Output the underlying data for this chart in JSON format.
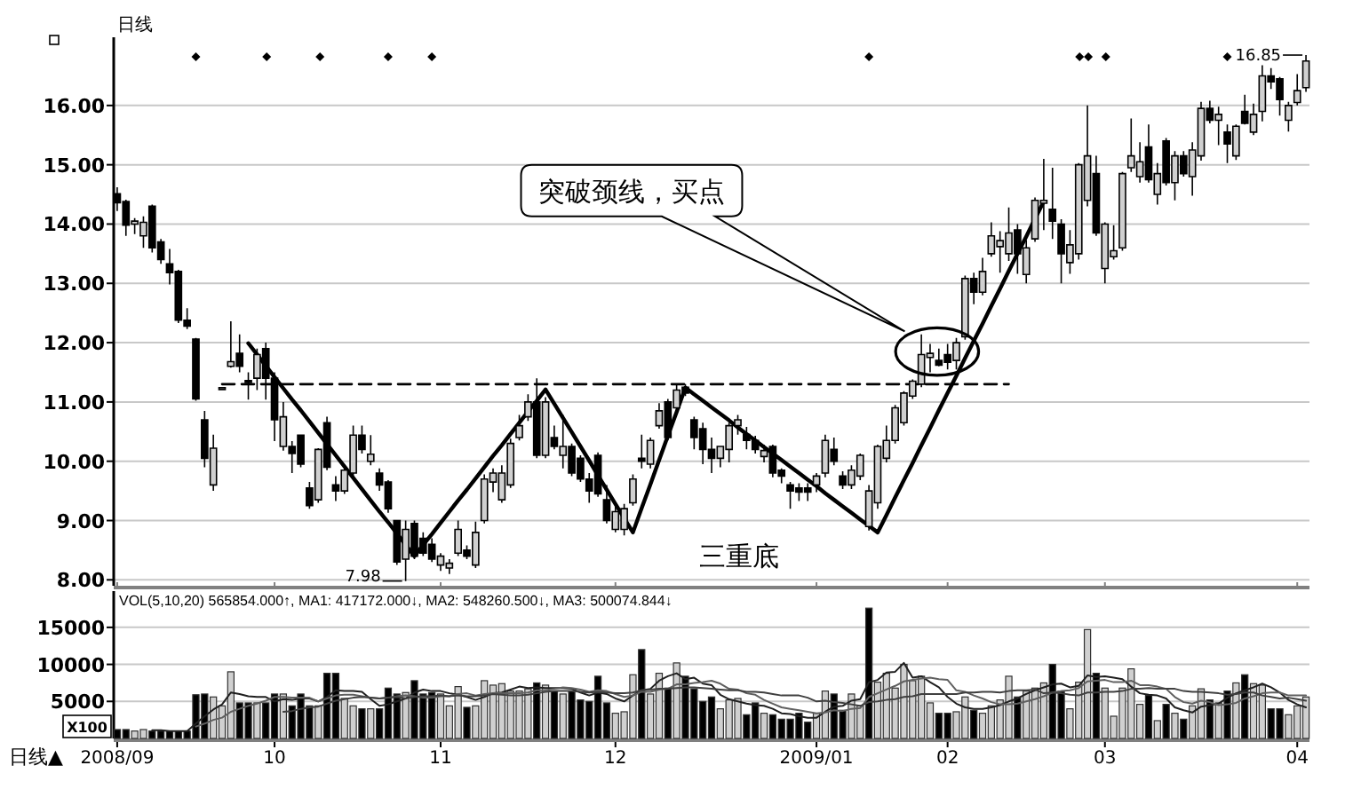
{
  "chart_data": [
    {
      "type": "candlestick",
      "title": "日线",
      "categories": [
        "2008/09",
        null,
        null,
        null,
        null,
        null,
        null,
        null,
        null,
        null,
        null,
        null,
        null,
        null,
        null,
        null,
        null,
        null,
        "10",
        null,
        null,
        null,
        null,
        null,
        null,
        null,
        null,
        null,
        null,
        null,
        null,
        null,
        null,
        null,
        null,
        null,
        null,
        "11",
        null,
        null,
        null,
        null,
        null,
        null,
        null,
        null,
        null,
        null,
        null,
        null,
        null,
        null,
        null,
        null,
        null,
        null,
        null,
        "12",
        null,
        null,
        null,
        null,
        null,
        null,
        null,
        null,
        null,
        null,
        null,
        null,
        null,
        null,
        null,
        null,
        null,
        null,
        null,
        null,
        null,
        null,
        "2009/01",
        null,
        null,
        null,
        null,
        null,
        null,
        null,
        null,
        null,
        null,
        null,
        null,
        null,
        null,
        "02",
        null,
        null,
        null,
        null,
        null,
        null,
        null,
        null,
        null,
        null,
        null,
        null,
        null,
        null,
        null,
        null,
        null,
        "03",
        null,
        null,
        null,
        null,
        null,
        null,
        null,
        null,
        null,
        null,
        null,
        null,
        null,
        null,
        null,
        null,
        null,
        null,
        null,
        null,
        null,
        "04",
        null
      ],
      "ohlc": [
        [
          14.51,
          14.62,
          14.22,
          14.36
        ],
        [
          14.38,
          14.41,
          13.8,
          13.98
        ],
        [
          14.0,
          14.1,
          13.83,
          14.05
        ],
        [
          13.8,
          14.13,
          13.6,
          14.03
        ],
        [
          14.3,
          14.33,
          13.52,
          13.6
        ],
        [
          13.7,
          13.75,
          13.33,
          13.4
        ],
        [
          13.33,
          13.58,
          12.98,
          13.18
        ],
        [
          13.2,
          13.23,
          12.33,
          12.38
        ],
        [
          12.38,
          12.58,
          12.23,
          12.28
        ],
        [
          12.06,
          12.08,
          11.02,
          11.05
        ],
        [
          10.7,
          10.85,
          9.9,
          10.05
        ],
        [
          9.6,
          10.45,
          9.5,
          10.22
        ],
        [
          11.22,
          11.25,
          11.2,
          11.24
        ],
        [
          11.6,
          12.36,
          11.58,
          11.68
        ],
        [
          11.82,
          12.14,
          11.5,
          11.6
        ],
        [
          11.36,
          11.5,
          11.04,
          11.34
        ],
        [
          11.4,
          11.9,
          11.2,
          11.8
        ],
        [
          11.9,
          12.0,
          11.04,
          11.4
        ],
        [
          11.4,
          11.5,
          10.34,
          10.7
        ],
        [
          10.25,
          11.0,
          10.18,
          10.75
        ],
        [
          10.25,
          10.34,
          9.8,
          10.13
        ],
        [
          10.44,
          10.44,
          9.9,
          9.95
        ],
        [
          9.55,
          9.65,
          9.2,
          9.25
        ],
        [
          9.35,
          10.22,
          9.3,
          10.2
        ],
        [
          10.65,
          10.75,
          9.85,
          9.9
        ],
        [
          9.6,
          9.75,
          9.33,
          9.5
        ],
        [
          9.5,
          9.93,
          9.45,
          9.85
        ],
        [
          9.8,
          10.6,
          9.74,
          10.44
        ],
        [
          10.44,
          10.6,
          10.13,
          10.2
        ],
        [
          10.0,
          10.44,
          9.93,
          10.12
        ],
        [
          9.8,
          9.88,
          9.5,
          9.6
        ],
        [
          9.65,
          9.68,
          9.13,
          9.2
        ],
        [
          9.0,
          9.0,
          8.25,
          8.3
        ],
        [
          8.35,
          9.0,
          7.98,
          8.85
        ],
        [
          8.95,
          9.0,
          8.35,
          8.4
        ],
        [
          8.7,
          8.8,
          8.4,
          8.45
        ],
        [
          8.6,
          8.7,
          8.3,
          8.35
        ],
        [
          8.25,
          8.45,
          8.15,
          8.4
        ],
        [
          8.2,
          8.35,
          8.1,
          8.28
        ],
        [
          8.45,
          9.0,
          8.4,
          8.85
        ],
        [
          8.5,
          8.58,
          8.35,
          8.4
        ],
        [
          8.25,
          8.98,
          8.2,
          8.8
        ],
        [
          9.0,
          9.78,
          8.95,
          9.7
        ],
        [
          9.65,
          9.88,
          9.48,
          9.8
        ],
        [
          9.35,
          9.93,
          9.3,
          9.8
        ],
        [
          9.6,
          10.38,
          9.55,
          10.3
        ],
        [
          10.4,
          10.78,
          10.35,
          10.6
        ],
        [
          10.75,
          11.13,
          10.68,
          11.0
        ],
        [
          11.0,
          11.4,
          10.05,
          10.1
        ],
        [
          10.1,
          11.08,
          10.05,
          11.0
        ],
        [
          10.4,
          10.6,
          10.2,
          10.25
        ],
        [
          10.1,
          10.78,
          9.88,
          10.25
        ],
        [
          10.25,
          10.3,
          9.75,
          9.8
        ],
        [
          10.05,
          10.1,
          9.65,
          9.7
        ],
        [
          9.7,
          9.8,
          9.3,
          9.5
        ],
        [
          10.1,
          10.15,
          9.4,
          9.45
        ],
        [
          9.35,
          9.6,
          8.95,
          9.0
        ],
        [
          8.85,
          9.25,
          8.8,
          9.15
        ],
        [
          8.85,
          9.28,
          8.75,
          9.2
        ],
        [
          9.3,
          9.78,
          9.25,
          9.7
        ],
        [
          10.05,
          10.45,
          9.88,
          10.0
        ],
        [
          9.95,
          10.4,
          9.88,
          10.35
        ],
        [
          10.6,
          10.98,
          10.55,
          10.85
        ],
        [
          11.0,
          11.05,
          10.35,
          10.4
        ],
        [
          10.9,
          11.3,
          10.85,
          11.2
        ],
        [
          11.25,
          11.3,
          11.1,
          11.15
        ],
        [
          10.7,
          10.75,
          10.2,
          10.4
        ],
        [
          10.55,
          10.65,
          9.95,
          10.2
        ],
        [
          10.2,
          10.4,
          9.8,
          10.05
        ],
        [
          10.05,
          10.25,
          9.9,
          10.25
        ],
        [
          10.2,
          10.65,
          9.98,
          10.6
        ],
        [
          10.6,
          10.78,
          10.45,
          10.7
        ],
        [
          10.45,
          10.58,
          10.2,
          10.35
        ],
        [
          10.35,
          10.43,
          10.13,
          10.2
        ],
        [
          10.08,
          10.28,
          9.98,
          10.18
        ],
        [
          10.25,
          10.28,
          9.73,
          9.8
        ],
        [
          9.85,
          9.88,
          9.63,
          9.75
        ],
        [
          9.6,
          9.65,
          9.2,
          9.5
        ],
        [
          9.55,
          9.63,
          9.33,
          9.48
        ],
        [
          9.55,
          9.63,
          9.33,
          9.48
        ],
        [
          9.6,
          9.8,
          9.48,
          9.75
        ],
        [
          9.8,
          10.45,
          9.73,
          10.35
        ],
        [
          10.2,
          10.4,
          9.93,
          10.0
        ],
        [
          9.75,
          9.83,
          9.53,
          9.6
        ],
        [
          9.6,
          9.93,
          9.53,
          9.85
        ],
        [
          9.75,
          10.13,
          9.68,
          10.1
        ],
        [
          8.9,
          9.6,
          8.83,
          9.5
        ],
        [
          9.3,
          10.28,
          9.2,
          10.25
        ],
        [
          10.05,
          10.6,
          9.98,
          10.35
        ],
        [
          10.35,
          10.95,
          10.3,
          10.9
        ],
        [
          10.65,
          11.18,
          10.6,
          11.15
        ],
        [
          11.1,
          11.38,
          11.05,
          11.35
        ],
        [
          11.3,
          12.14,
          11.25,
          11.8
        ],
        [
          11.75,
          11.98,
          11.5,
          11.82
        ],
        [
          11.7,
          11.9,
          11.6,
          11.62
        ],
        [
          11.8,
          11.98,
          11.55,
          11.67
        ],
        [
          11.7,
          12.08,
          11.55,
          12.0
        ],
        [
          12.1,
          13.13,
          12.05,
          13.08
        ],
        [
          13.08,
          13.18,
          12.65,
          12.85
        ],
        [
          12.85,
          13.43,
          12.8,
          13.2
        ],
        [
          13.5,
          14.03,
          13.45,
          13.8
        ],
        [
          13.62,
          13.88,
          13.18,
          13.72
        ],
        [
          13.5,
          14.28,
          13.38,
          13.85
        ],
        [
          13.9,
          14.0,
          13.16,
          13.5
        ],
        [
          13.15,
          13.73,
          13.0,
          13.6
        ],
        [
          13.75,
          14.45,
          13.7,
          14.4
        ],
        [
          14.35,
          15.1,
          13.9,
          14.4
        ],
        [
          14.25,
          14.95,
          13.75,
          14.05
        ],
        [
          14.0,
          14.08,
          13.0,
          13.5
        ],
        [
          13.35,
          13.9,
          13.16,
          13.65
        ],
        [
          13.5,
          15.03,
          13.4,
          15.0
        ],
        [
          14.4,
          16.0,
          14.3,
          15.15
        ],
        [
          14.85,
          15.15,
          13.8,
          13.85
        ],
        [
          13.25,
          14.03,
          13.0,
          14.0
        ],
        [
          13.45,
          13.98,
          13.4,
          13.55
        ],
        [
          13.6,
          14.88,
          13.55,
          14.85
        ],
        [
          14.95,
          15.78,
          14.88,
          15.15
        ],
        [
          14.8,
          15.38,
          14.7,
          15.05
        ],
        [
          15.3,
          15.68,
          14.7,
          14.75
        ],
        [
          14.5,
          15.03,
          14.33,
          14.85
        ],
        [
          15.4,
          15.45,
          14.65,
          14.7
        ],
        [
          14.7,
          15.23,
          14.4,
          15.15
        ],
        [
          15.15,
          15.23,
          14.8,
          14.85
        ],
        [
          14.8,
          15.38,
          14.48,
          15.25
        ],
        [
          15.15,
          16.06,
          15.07,
          15.95
        ],
        [
          15.95,
          16.08,
          15.7,
          15.75
        ],
        [
          15.75,
          15.98,
          15.33,
          15.85
        ],
        [
          15.55,
          15.68,
          15.03,
          15.35
        ],
        [
          15.15,
          15.68,
          15.08,
          15.65
        ],
        [
          15.9,
          16.18,
          15.68,
          15.7
        ],
        [
          15.55,
          16.03,
          15.5,
          15.85
        ],
        [
          15.9,
          16.68,
          15.73,
          16.5
        ],
        [
          16.5,
          16.63,
          16.28,
          16.4
        ],
        [
          16.45,
          16.48,
          15.83,
          16.1
        ],
        [
          15.75,
          16.06,
          15.56,
          16.0
        ],
        [
          16.05,
          16.53,
          16.0,
          16.25
        ],
        [
          16.3,
          16.85,
          16.23,
          16.75
        ]
      ],
      "colors": [
        "#000000",
        "#000000",
        "#d0d0d0",
        "#d0d0d0",
        "#000000",
        "#000000",
        "#000000",
        "#000000",
        "#000000",
        "#000000",
        "#000000",
        "#d0d0d0",
        "#d0d0d0",
        "#d0d0d0",
        "#000000",
        "#000000",
        "#d0d0d0",
        "#000000",
        "#000000",
        "#d0d0d0",
        "#000000",
        "#000000",
        "#000000",
        "#d0d0d0",
        "#000000",
        "#000000",
        "#d0d0d0",
        "#d0d0d0",
        "#000000",
        "#d0d0d0",
        "#000000",
        "#000000",
        "#000000",
        "#d0d0d0",
        "#000000",
        "#000000",
        "#000000",
        "#d0d0d0",
        "#d0d0d0",
        "#d0d0d0",
        "#000000",
        "#d0d0d0",
        "#d0d0d0",
        "#d0d0d0",
        "#d0d0d0",
        "#d0d0d0",
        "#d0d0d0",
        "#d0d0d0",
        "#000000",
        "#d0d0d0",
        "#000000",
        "#d0d0d0",
        "#000000",
        "#000000",
        "#000000",
        "#000000",
        "#000000",
        "#d0d0d0",
        "#d0d0d0",
        "#d0d0d0",
        "#000000",
        "#d0d0d0",
        "#d0d0d0",
        "#000000",
        "#d0d0d0",
        "#000000",
        "#000000",
        "#000000",
        "#000000",
        "#d0d0d0",
        "#d0d0d0",
        "#d0d0d0",
        "#000000",
        "#000000",
        "#d0d0d0",
        "#000000",
        "#000000",
        "#000000",
        "#000000",
        "#000000",
        "#d0d0d0",
        "#d0d0d0",
        "#000000",
        "#000000",
        "#d0d0d0",
        "#d0d0d0",
        "#d0d0d0",
        "#d0d0d0",
        "#d0d0d0",
        "#d0d0d0",
        "#d0d0d0",
        "#d0d0d0",
        "#d0d0d0",
        "#d0d0d0",
        "#000000",
        "#000000",
        "#d0d0d0",
        "#d0d0d0",
        "#000000",
        "#d0d0d0",
        "#d0d0d0",
        "#d0d0d0",
        "#d0d0d0",
        "#000000",
        "#d0d0d0",
        "#d0d0d0",
        "#d0d0d0",
        "#000000",
        "#000000",
        "#d0d0d0",
        "#d0d0d0",
        "#d0d0d0",
        "#000000",
        "#d0d0d0",
        "#d0d0d0",
        "#d0d0d0",
        "#d0d0d0",
        "#d0d0d0",
        "#000000",
        "#d0d0d0",
        "#000000",
        "#d0d0d0",
        "#000000",
        "#d0d0d0",
        "#d0d0d0",
        "#000000",
        "#d0d0d0",
        "#000000",
        "#d0d0d0",
        "#000000",
        "#d0d0d0",
        "#d0d0d0",
        "#000000",
        "#000000",
        "#d0d0d0",
        "#d0d0d0",
        "#d0d0d0"
      ],
      "series": [
        {
          "type": "line",
          "color": "#000000",
          "line_style": "dashed",
          "values": [
            null,
            null,
            null,
            null,
            null,
            null,
            null,
            null,
            null,
            null,
            null,
            null,
            11.3,
            11.3,
            11.3,
            11.3,
            11.3,
            11.3,
            11.3,
            11.3,
            11.3,
            11.3,
            11.3,
            11.3,
            11.3,
            11.3,
            11.3,
            11.3,
            11.3,
            11.3,
            11.3,
            11.3,
            11.3,
            11.3,
            11.3,
            11.3,
            11.3,
            11.3,
            11.3,
            11.3,
            11.3,
            11.3,
            11.3,
            11.3,
            11.3,
            11.3,
            11.3,
            11.3,
            11.3,
            11.3,
            11.3,
            11.3,
            11.3,
            11.3,
            11.3,
            11.3,
            11.3,
            11.3,
            11.3,
            11.3,
            11.3,
            11.3,
            11.3,
            11.3,
            11.3,
            11.3,
            11.3,
            11.3,
            11.3,
            11.3,
            11.3,
            11.3,
            11.3,
            11.3,
            11.3,
            11.3,
            11.3,
            11.3,
            11.3,
            11.3,
            11.3,
            11.3,
            11.3,
            11.3,
            11.3,
            11.3,
            11.3,
            11.3,
            11.3,
            11.3,
            11.3,
            11.3,
            11.3,
            11.3,
            11.3,
            11.3,
            11.3,
            11.3,
            11.3,
            11.3,
            11.3,
            11.3,
            11.3,
            null,
            null,
            null,
            null,
            null,
            null,
            null,
            null,
            null,
            null,
            null,
            null,
            null,
            null,
            null,
            null,
            null,
            null,
            null,
            null,
            null,
            null,
            null,
            null,
            null,
            null,
            null,
            null,
            null,
            null,
            null,
            null,
            null,
            null
          ]
        },
        {
          "type": "line",
          "color": "#000000",
          "line_style": "solid",
          "values": [
            null,
            null,
            null,
            null,
            null,
            null,
            null,
            null,
            null,
            null,
            null,
            null,
            null,
            null,
            null,
            11.99,
            11.8,
            11.61,
            11.42,
            11.23,
            11.04,
            10.86,
            10.67,
            10.48,
            10.29,
            10.1,
            9.91,
            9.72,
            9.53,
            9.34,
            9.15,
            8.97,
            8.78,
            8.59,
            8.4,
            8.59,
            8.77,
            8.96,
            9.15,
            9.34,
            9.52,
            9.71,
            9.9,
            10.09,
            10.27,
            10.46,
            10.65,
            10.84,
            11.02,
            11.21,
            10.97,
            10.73,
            10.49,
            10.25,
            10.01,
            9.76,
            9.52,
            9.28,
            9.04,
            8.8,
            9.21,
            9.61,
            10.02,
            10.43,
            10.83,
            11.24,
            11.13,
            11.02,
            10.91,
            10.8,
            10.69,
            10.57,
            10.46,
            10.35,
            10.24,
            10.13,
            10.02,
            9.91,
            9.8,
            9.69,
            9.58,
            9.46,
            9.35,
            9.24,
            9.13,
            9.02,
            8.91,
            8.8,
            9.09,
            9.39,
            9.68,
            9.97,
            10.27,
            10.56,
            10.86,
            11.15,
            11.44,
            11.74,
            12.03,
            12.32,
            12.62,
            12.91,
            13.21,
            13.5,
            13.79,
            14.09,
            14.38,
            null,
            null,
            null,
            null,
            null,
            null,
            null,
            null,
            null,
            null,
            null,
            null,
            null,
            null,
            null,
            null,
            null,
            null,
            null,
            null,
            null,
            null,
            null,
            null,
            null,
            null,
            null,
            null,
            null,
            null
          ]
        }
      ],
      "ylim": [
        7.9,
        17.15
      ],
      "yticks": [
        {
          "value": 8,
          "label": "8.00"
        },
        {
          "value": 9,
          "label": "9.00"
        },
        {
          "value": 10,
          "label": "10.00"
        },
        {
          "value": 11,
          "label": "11.00"
        },
        {
          "value": 12,
          "label": "12.00"
        },
        {
          "value": 13,
          "label": "13.00"
        },
        {
          "value": 14,
          "label": "14.00"
        },
        {
          "value": 15,
          "label": "15.00"
        },
        {
          "value": 16,
          "label": "16.00"
        }
      ],
      "grid": "y",
      "tick_labels": "y",
      "annotations": [
        "16.85",
        "7.98",
        "突破颈线，买点",
        "三重底"
      ]
    },
    {
      "type": "bar",
      "categories": [
        "2008/09",
        null,
        null,
        null,
        null,
        null,
        null,
        null,
        null,
        null,
        null,
        null,
        null,
        null,
        null,
        null,
        null,
        null,
        "10",
        null,
        null,
        null,
        null,
        null,
        null,
        null,
        null,
        null,
        null,
        null,
        null,
        null,
        null,
        null,
        null,
        null,
        null,
        "11",
        null,
        null,
        null,
        null,
        null,
        null,
        null,
        null,
        null,
        null,
        null,
        null,
        null,
        null,
        null,
        null,
        null,
        null,
        null,
        "12",
        null,
        null,
        null,
        null,
        null,
        null,
        null,
        null,
        null,
        null,
        null,
        null,
        null,
        null,
        null,
        null,
        null,
        null,
        null,
        null,
        null,
        null,
        "2009/01",
        null,
        null,
        null,
        null,
        null,
        null,
        null,
        null,
        null,
        null,
        null,
        null,
        null,
        null,
        "02",
        null,
        null,
        null,
        null,
        null,
        null,
        null,
        null,
        null,
        null,
        null,
        null,
        null,
        null,
        null,
        null,
        null,
        "03",
        null,
        null,
        null,
        null,
        null,
        null,
        null,
        null,
        null,
        null,
        null,
        null,
        null,
        null,
        null,
        null,
        null,
        null,
        null,
        null,
        null,
        "04",
        null
      ],
      "series": [
        {
          "type": "bar",
          "values": [
            1200,
            1200,
            1000,
            1200,
            1000,
            1000,
            1000,
            1000,
            1000,
            5900,
            6000,
            5600,
            4400,
            9000,
            4800,
            4800,
            4800,
            4800,
            6000,
            6000,
            4400,
            6000,
            4400,
            4400,
            8800,
            8800,
            5400,
            4400,
            4000,
            4000,
            4000,
            6800,
            6000,
            6200,
            7800,
            6000,
            6200,
            6000,
            4400,
            7000,
            4200,
            4400,
            7800,
            7200,
            7400,
            6400,
            6400,
            6700,
            7500,
            7200,
            6400,
            6000,
            6400,
            5200,
            5000,
            8400,
            4800,
            3400,
            3600,
            8600,
            12000,
            6000,
            8800,
            6800,
            10200,
            8400,
            6700,
            5000,
            5600,
            4000,
            5200,
            5400,
            3200,
            4800,
            3400,
            3200,
            2600,
            2600,
            3400,
            2200,
            3400,
            6400,
            6000,
            3800,
            6000,
            4400,
            17600,
            7600,
            8800,
            6800,
            10000,
            7800,
            8400,
            4800,
            3400,
            3400,
            3600,
            5600,
            3800,
            3400,
            4400,
            5200,
            8400,
            5600,
            6400,
            6800,
            7500,
            10000,
            6400,
            4000,
            7600,
            14700,
            8800,
            6800,
            3000,
            6800,
            9400,
            4600,
            5800,
            2400,
            4600,
            3400,
            2600,
            4400,
            6700,
            5200,
            4800,
            6400,
            7500,
            8600,
            7400,
            7200,
            4000,
            4000,
            3200,
            4400,
            5600
          ],
          "colors": [
            "#000000",
            "#000000",
            "#d0d0d0",
            "#d0d0d0",
            "#000000",
            "#000000",
            "#000000",
            "#000000",
            "#000000",
            "#000000",
            "#000000",
            "#d0d0d0",
            "#d0d0d0",
            "#d0d0d0",
            "#000000",
            "#000000",
            "#d0d0d0",
            "#000000",
            "#000000",
            "#d0d0d0",
            "#000000",
            "#000000",
            "#000000",
            "#d0d0d0",
            "#000000",
            "#000000",
            "#d0d0d0",
            "#d0d0d0",
            "#000000",
            "#d0d0d0",
            "#000000",
            "#000000",
            "#000000",
            "#d0d0d0",
            "#000000",
            "#000000",
            "#000000",
            "#d0d0d0",
            "#d0d0d0",
            "#d0d0d0",
            "#000000",
            "#d0d0d0",
            "#d0d0d0",
            "#d0d0d0",
            "#d0d0d0",
            "#d0d0d0",
            "#d0d0d0",
            "#d0d0d0",
            "#000000",
            "#d0d0d0",
            "#000000",
            "#d0d0d0",
            "#000000",
            "#000000",
            "#000000",
            "#000000",
            "#000000",
            "#d0d0d0",
            "#d0d0d0",
            "#d0d0d0",
            "#000000",
            "#d0d0d0",
            "#d0d0d0",
            "#000000",
            "#d0d0d0",
            "#000000",
            "#000000",
            "#000000",
            "#000000",
            "#d0d0d0",
            "#d0d0d0",
            "#d0d0d0",
            "#000000",
            "#000000",
            "#d0d0d0",
            "#000000",
            "#000000",
            "#000000",
            "#000000",
            "#000000",
            "#d0d0d0",
            "#d0d0d0",
            "#000000",
            "#000000",
            "#d0d0d0",
            "#d0d0d0",
            "#000000",
            "#d0d0d0",
            "#d0d0d0",
            "#d0d0d0",
            "#d0d0d0",
            "#d0d0d0",
            "#d0d0d0",
            "#d0d0d0",
            "#000000",
            "#000000",
            "#d0d0d0",
            "#d0d0d0",
            "#000000",
            "#d0d0d0",
            "#d0d0d0",
            "#d0d0d0",
            "#d0d0d0",
            "#000000",
            "#d0d0d0",
            "#d0d0d0",
            "#d0d0d0",
            "#000000",
            "#000000",
            "#d0d0d0",
            "#d0d0d0",
            "#d0d0d0",
            "#000000",
            "#d0d0d0",
            "#d0d0d0",
            "#d0d0d0",
            "#d0d0d0",
            "#d0d0d0",
            "#000000",
            "#d0d0d0",
            "#000000",
            "#d0d0d0",
            "#000000",
            "#d0d0d0",
            "#d0d0d0",
            "#000000",
            "#d0d0d0",
            "#000000",
            "#d0d0d0",
            "#000000",
            "#d0d0d0",
            "#d0d0d0",
            "#000000",
            "#000000",
            "#d0d0d0",
            "#d0d0d0",
            "#d0d0d0"
          ]
        },
        {
          "type": "line",
          "color": "#202020",
          "values": [
            null,
            null,
            null,
            null,
            1100,
            1100,
            1000,
            1000,
            1000,
            2000,
            3000,
            3900,
            4600,
            6200,
            6000,
            5700,
            5600,
            5600,
            5000,
            5300,
            5200,
            5400,
            5400,
            5000,
            5600,
            6500,
            6400,
            6400,
            6300,
            5300,
            4400,
            4600,
            5000,
            5400,
            6200,
            6600,
            6400,
            6400,
            6100,
            5900,
            5600,
            5200,
            5600,
            6100,
            6200,
            6600,
            7000,
            6800,
            6900,
            6800,
            6800,
            6800,
            6700,
            6200,
            5800,
            6200,
            6000,
            5400,
            5000,
            5800,
            6500,
            6700,
            7800,
            8400,
            8800,
            8000,
            8200,
            7400,
            7200,
            5900,
            5300,
            5000,
            4700,
            4500,
            4400,
            4000,
            3400,
            3300,
            3000,
            2800,
            2800,
            3600,
            4300,
            4400,
            5100,
            5300,
            7600,
            7900,
            8900,
            9000,
            10200,
            8200,
            8400,
            7600,
            6900,
            5600,
            4700,
            4200,
            4000,
            4000,
            4200,
            4500,
            5000,
            5400,
            6000,
            6500,
            6900,
            7300,
            7400,
            6900,
            7100,
            8500,
            8300,
            8400,
            8200,
            8000,
            7000,
            6100,
            5900,
            5800,
            5400,
            4200,
            3800,
            3500,
            4300,
            4500,
            4700,
            5500,
            6100,
            6500,
            6900,
            7400,
            6900,
            6200,
            5200,
            4600,
            4200
          ]
        },
        {
          "type": "line",
          "color": "#606060",
          "values": [
            null,
            null,
            null,
            null,
            null,
            null,
            null,
            null,
            null,
            1600,
            2000,
            2500,
            2800,
            3600,
            4000,
            4400,
            4700,
            5100,
            5600,
            5600,
            5500,
            5500,
            5500,
            5000,
            5400,
            5800,
            5900,
            5900,
            5700,
            5500,
            5400,
            5500,
            5700,
            5800,
            5700,
            5500,
            5500,
            5700,
            5700,
            6000,
            6100,
            5800,
            6000,
            6100,
            6100,
            6100,
            6100,
            6200,
            6500,
            6500,
            6700,
            6900,
            6800,
            6600,
            6300,
            6500,
            6400,
            6000,
            5600,
            5800,
            6300,
            6300,
            6600,
            6700,
            7300,
            7300,
            7500,
            7600,
            7800,
            7400,
            6700,
            6600,
            6100,
            5900,
            5200,
            4700,
            4200,
            4000,
            3800,
            3600,
            3400,
            3500,
            3800,
            3700,
            4000,
            4100,
            5600,
            6100,
            6600,
            7100,
            7700,
            7900,
            8100,
            8200,
            8000,
            7900,
            6500,
            6300,
            5800,
            5400,
            4900,
            4600,
            4600,
            4700,
            5000,
            5300,
            5700,
            6200,
            6400,
            6500,
            6800,
            7700,
            7800,
            7900,
            7600,
            7600,
            7800,
            7200,
            7200,
            7000,
            6700,
            5600,
            4900,
            4700,
            5100,
            4900,
            4500,
            4600,
            4800,
            5400,
            5700,
            6100,
            6200,
            6200,
            5800,
            5800,
            5800
          ]
        },
        {
          "type": "line",
          "color": "#404040",
          "values": [
            null,
            null,
            null,
            null,
            null,
            null,
            null,
            null,
            null,
            null,
            null,
            null,
            null,
            null,
            null,
            null,
            null,
            null,
            null,
            3600,
            3700,
            4000,
            4200,
            4300,
            4700,
            5100,
            5300,
            5500,
            5600,
            5500,
            5400,
            5500,
            5600,
            5400,
            5600,
            5700,
            5700,
            5800,
            5700,
            5800,
            5700,
            5700,
            5800,
            6000,
            5900,
            5800,
            5800,
            5900,
            6100,
            6300,
            6400,
            6400,
            6400,
            6300,
            6200,
            6300,
            6200,
            6100,
            6100,
            6200,
            6500,
            6600,
            6700,
            6700,
            6800,
            6900,
            6900,
            6800,
            6700,
            6600,
            6500,
            6500,
            6300,
            6300,
            6200,
            6000,
            5800,
            5800,
            5800,
            5500,
            5000,
            5100,
            4900,
            4800,
            4600,
            4400,
            4900,
            5000,
            5200,
            5300,
            5600,
            5700,
            6000,
            6000,
            6000,
            6000,
            6000,
            6200,
            6200,
            6300,
            6300,
            6200,
            6400,
            6500,
            6500,
            6600,
            6100,
            6200,
            6100,
            5900,
            5800,
            6200,
            6200,
            6300,
            6300,
            6400,
            6700,
            6700,
            6800,
            6700,
            6700,
            6700,
            6400,
            6300,
            6300,
            6200,
            6100,
            5900,
            6000,
            6200,
            6200,
            5800,
            5600,
            5400,
            5500,
            5300,
            5100
          ]
        }
      ],
      "ylim": [
        0,
        19900
      ],
      "yticks": [
        5000,
        10000,
        15000
      ],
      "grid": "y",
      "annotations": [
        "VOL(5,10,20) 565854.000↑, MA1: 417172.000↓, MA2: 548260.500↓, MA3: 500074.844↓",
        "X100",
        "日线▲"
      ]
    }
  ]
}
